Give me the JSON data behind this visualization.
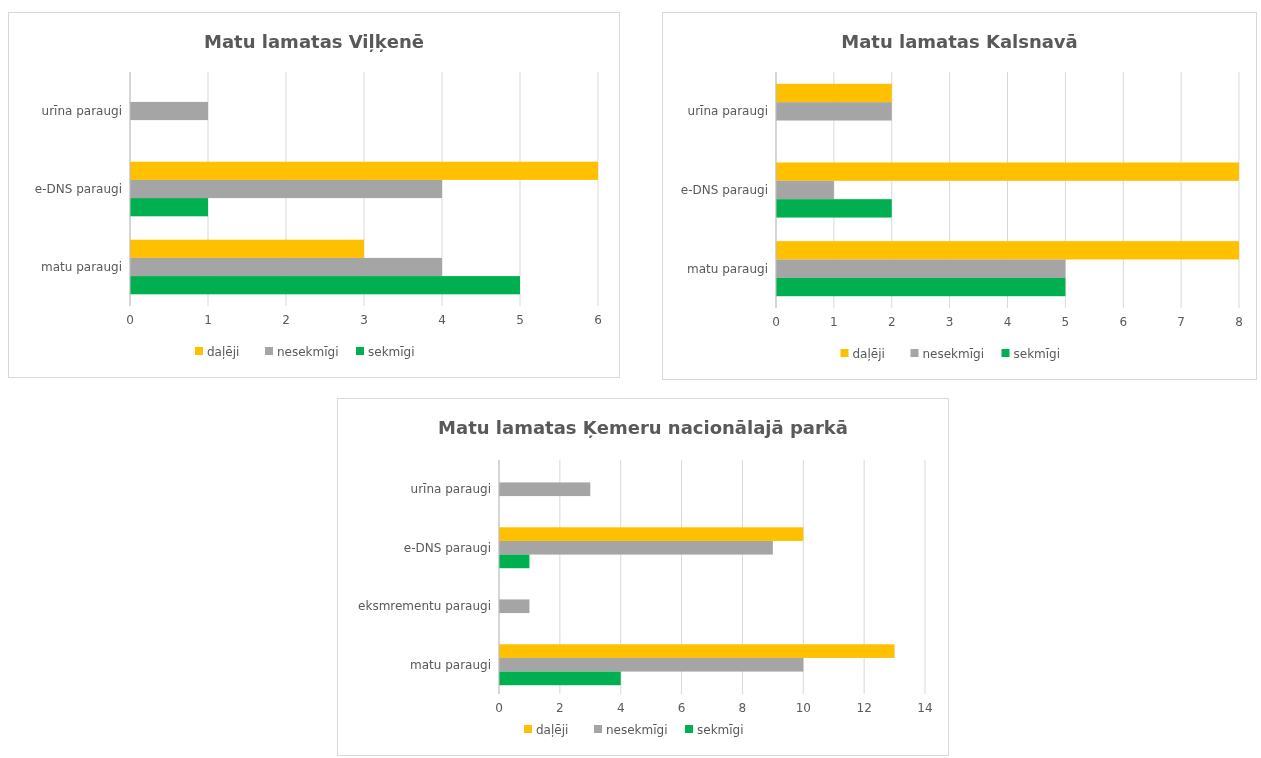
{
  "chart_data": [
    {
      "type": "bar",
      "orientation": "horizontal",
      "title": "Matu lamatas Viļķenē",
      "categories": [
        "urīna paraugi",
        "e-DNS paraugi",
        "matu paraugi"
      ],
      "series": [
        {
          "name": "daļēji",
          "color": "#ffc000",
          "values": [
            null,
            6,
            3
          ]
        },
        {
          "name": "nesekmīgi",
          "color": "#a5a5a5",
          "values": [
            1,
            4,
            4
          ]
        },
        {
          "name": "sekmīgi",
          "color": "#00b050",
          "values": [
            null,
            1,
            5
          ]
        }
      ],
      "xlim": [
        0,
        6
      ],
      "xticks": [
        0,
        1,
        2,
        3,
        4,
        5,
        6
      ],
      "grid": "x",
      "legend": "bottom"
    },
    {
      "type": "bar",
      "orientation": "horizontal",
      "title": "Matu lamatas Kalsnavā",
      "categories": [
        "urīna paraugi",
        "e-DNS paraugi",
        "matu paraugi"
      ],
      "series": [
        {
          "name": "daļēji",
          "color": "#ffc000",
          "values": [
            2,
            8,
            8
          ]
        },
        {
          "name": "nesekmīgi",
          "color": "#a5a5a5",
          "values": [
            2,
            1,
            5
          ]
        },
        {
          "name": "sekmīgi",
          "color": "#00b050",
          "values": [
            null,
            2,
            5
          ]
        }
      ],
      "xlim": [
        0,
        8
      ],
      "xticks": [
        0,
        1,
        2,
        3,
        4,
        5,
        6,
        7,
        8
      ],
      "grid": "x",
      "legend": "bottom"
    },
    {
      "type": "bar",
      "orientation": "horizontal",
      "title": "Matu lamatas Ķemeru nacionālajā parkā",
      "categories": [
        "urīna paraugi",
        "e-DNS paraugi",
        "eksmrementu paraugi",
        "matu paraugi"
      ],
      "series": [
        {
          "name": "daļēji",
          "color": "#ffc000",
          "values": [
            null,
            10,
            null,
            13
          ]
        },
        {
          "name": "nesekmīgi",
          "color": "#a5a5a5",
          "values": [
            3,
            9,
            1,
            10
          ]
        },
        {
          "name": "sekmīgi",
          "color": "#00b050",
          "values": [
            null,
            1,
            null,
            4
          ]
        }
      ],
      "xlim": [
        0,
        14
      ],
      "xticks": [
        0,
        2,
        4,
        6,
        8,
        10,
        12,
        14
      ],
      "grid": "x",
      "legend": "bottom"
    }
  ]
}
